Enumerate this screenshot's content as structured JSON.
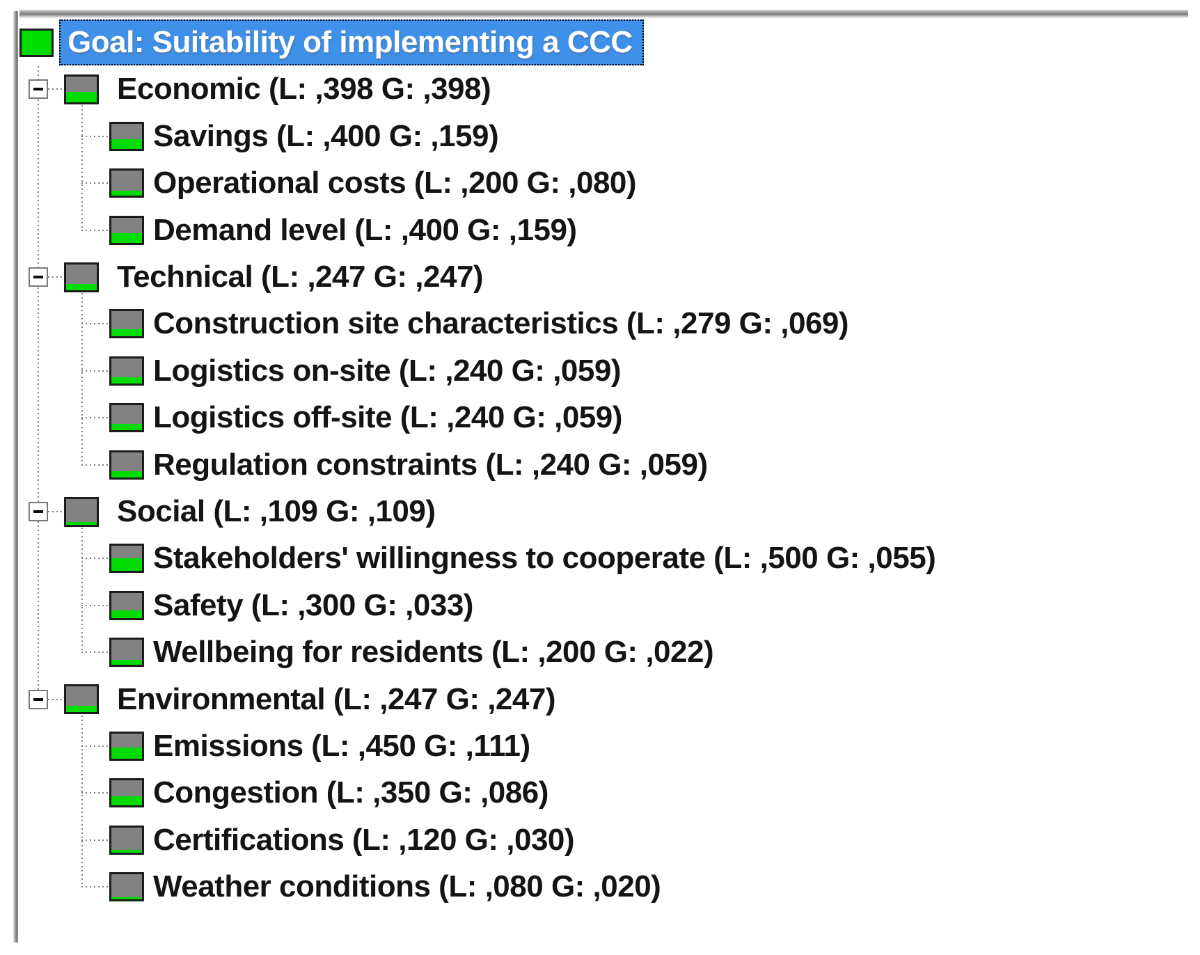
{
  "panel": {
    "background": "#ffffff",
    "top_border": "gray-3d-edge",
    "left_border": "gray-3d-edge"
  },
  "colors": {
    "selection_blue": "#3e90e8",
    "selected_text": "#ffffff",
    "node_text": "#141414",
    "priority_green": "#00dc00",
    "icon_gray": "#828282",
    "icon_border": "#1c1c1c",
    "tree_line_gray": "#7e7e7e",
    "expand_box_border": "#7a7a7a",
    "minus_glyph": "#0d0d0d"
  },
  "tree": {
    "nodes": [
      {
        "name": "Goal",
        "label": "Goal: Suitability of implementing a CCC",
        "depth": 0,
        "priority": 1.0,
        "selected": true,
        "expanded": false
      },
      {
        "name": "Economic",
        "local": ",398",
        "global": ",398",
        "label": "Economic (L: ,398 G: ,398)",
        "depth": 1,
        "priority": 0.398,
        "selected": false,
        "expanded": true
      },
      {
        "name": "Savings",
        "local": ",400",
        "global": ",159",
        "label": "Savings (L: ,400 G: ,159)",
        "depth": 2,
        "priority": 0.4,
        "selected": false,
        "expanded": false
      },
      {
        "name": "Operational costs",
        "local": ",200",
        "global": ",080",
        "label": "Operational costs (L: ,200 G: ,080)",
        "depth": 2,
        "priority": 0.2,
        "selected": false,
        "expanded": false
      },
      {
        "name": "Demand level",
        "local": ",400",
        "global": ",159",
        "label": "Demand level (L: ,400 G: ,159)",
        "depth": 2,
        "priority": 0.4,
        "selected": false,
        "expanded": false
      },
      {
        "name": "Technical",
        "local": ",247",
        "global": ",247",
        "label": "Technical (L: ,247 G: ,247)",
        "depth": 1,
        "priority": 0.247,
        "selected": false,
        "expanded": true
      },
      {
        "name": "Construction site characteristics",
        "local": ",279",
        "global": ",069",
        "label": "Construction site characteristics (L: ,279 G: ,069)",
        "depth": 2,
        "priority": 0.279,
        "selected": false,
        "expanded": false
      },
      {
        "name": "Logistics on-site",
        "local": ",240",
        "global": ",059",
        "label": "Logistics on-site (L: ,240 G: ,059)",
        "depth": 2,
        "priority": 0.24,
        "selected": false,
        "expanded": false
      },
      {
        "name": "Logistics off-site",
        "local": ",240",
        "global": ",059",
        "label": "Logistics off-site (L: ,240 G: ,059)",
        "depth": 2,
        "priority": 0.24,
        "selected": false,
        "expanded": false
      },
      {
        "name": "Regulation constraints",
        "local": ",240",
        "global": ",059",
        "label": "Regulation constraints (L: ,240 G: ,059)",
        "depth": 2,
        "priority": 0.24,
        "selected": false,
        "expanded": false
      },
      {
        "name": "Social",
        "local": ",109",
        "global": ",109",
        "label": "Social (L: ,109 G: ,109)",
        "depth": 1,
        "priority": 0.109,
        "selected": false,
        "expanded": true
      },
      {
        "name": "Stakeholders' willingness to cooperate",
        "local": ",500",
        "global": ",055",
        "label": "Stakeholders' willingness to cooperate (L: ,500 G: ,055)",
        "depth": 2,
        "priority": 0.5,
        "selected": false,
        "expanded": false
      },
      {
        "name": "Safety",
        "local": ",300",
        "global": ",033",
        "label": "Safety (L: ,300 G: ,033)",
        "depth": 2,
        "priority": 0.3,
        "selected": false,
        "expanded": false
      },
      {
        "name": "Wellbeing for residents",
        "local": ",200",
        "global": ",022",
        "label": "Wellbeing for residents (L: ,200 G: ,022)",
        "depth": 2,
        "priority": 0.2,
        "selected": false,
        "expanded": false
      },
      {
        "name": "Environmental",
        "local": ",247",
        "global": ",247",
        "label": "Environmental (L: ,247 G: ,247)",
        "depth": 1,
        "priority": 0.247,
        "selected": false,
        "expanded": true
      },
      {
        "name": "Emissions",
        "local": ",450",
        "global": ",111",
        "label": "Emissions (L: ,450 G: ,111)",
        "depth": 2,
        "priority": 0.45,
        "selected": false,
        "expanded": false
      },
      {
        "name": "Congestion",
        "local": ",350",
        "global": ",086",
        "label": "Congestion (L: ,350 G: ,086)",
        "depth": 2,
        "priority": 0.35,
        "selected": false,
        "expanded": false
      },
      {
        "name": "Certifications",
        "local": ",120",
        "global": ",030",
        "label": "Certifications (L: ,120 G: ,030)",
        "depth": 2,
        "priority": 0.12,
        "selected": false,
        "expanded": false
      },
      {
        "name": "Weather conditions",
        "local": ",080",
        "global": ",020",
        "label": "Weather conditions (L: ,080 G: ,020)",
        "depth": 2,
        "priority": 0.08,
        "selected": false,
        "expanded": false
      }
    ]
  }
}
